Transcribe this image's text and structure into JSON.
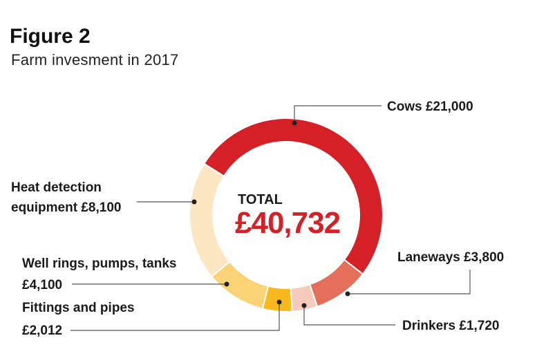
{
  "chart_data": {
    "type": "pie",
    "title": "Figure 2",
    "subtitle": "Farm invesment in 2017",
    "total_label": "TOTAL",
    "total_value": "£40,732",
    "slices": [
      {
        "name": "Cows",
        "value": 21000,
        "value_label": "£21,000",
        "color": "#d52027"
      },
      {
        "name": "Laneways",
        "value": 3800,
        "value_label": "£3,800",
        "color": "#e4705c"
      },
      {
        "name": "Drinkers",
        "value": 1720,
        "value_label": "£1,720",
        "color": "#f5cbbd"
      },
      {
        "name": "Fittings and pipes",
        "value": 2012,
        "value_label": "£2,012",
        "color": "#f7b91d"
      },
      {
        "name": "Well rings, pumps, tanks",
        "value": 4100,
        "value_label": "£4,100",
        "color": "#fbd275"
      },
      {
        "name": "Heat detection equipment",
        "value": 8100,
        "value_label": "£8,100",
        "color": "#fde6c2"
      }
    ],
    "labels": {
      "cows": "Cows £21,000",
      "laneways": "Laneways £3,800",
      "drinkers": "Drinkers £1,720",
      "fittings_line1": "Fittings and pipes",
      "fittings_line2": "£2,012",
      "well_line1": "Well rings, pumps, tanks",
      "well_line2": "£4,100",
      "heat_line1": "Heat detection",
      "heat_line2": "equipment £8,100"
    },
    "legend": "none (leader-line labels)"
  }
}
